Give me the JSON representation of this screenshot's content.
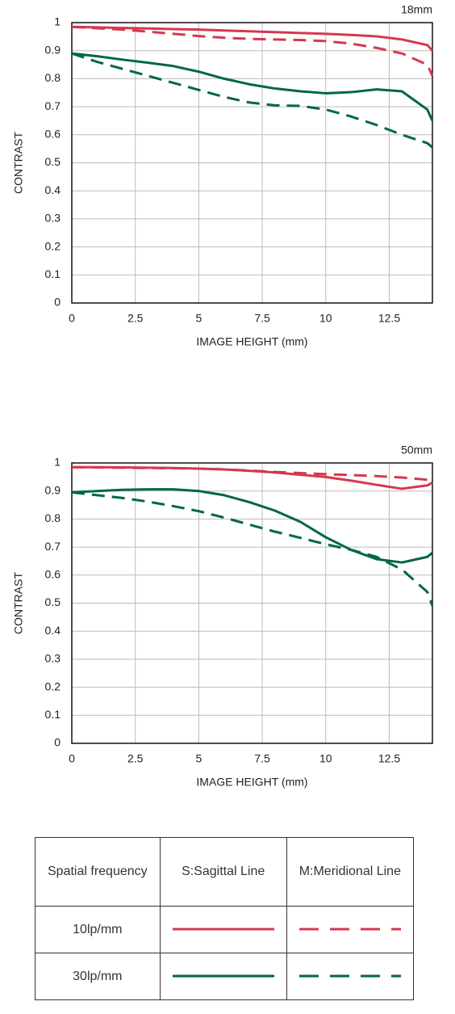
{
  "chart_data": [
    {
      "type": "line",
      "title": "18mm",
      "x_label": "IMAGE HEIGHT (mm)",
      "y_label": "CONTRAST",
      "x": [
        0,
        1,
        2,
        3,
        4,
        5,
        6,
        7,
        8,
        9,
        10,
        11,
        12,
        13,
        14,
        14.2
      ],
      "xlim": [
        0,
        14.2
      ],
      "ylim": [
        0,
        1
      ],
      "xticks": [
        0,
        2.5,
        5,
        7.5,
        10,
        12.5
      ],
      "yticks": [
        0,
        0.1,
        0.2,
        0.3,
        0.4,
        0.5,
        0.6,
        0.7,
        0.8,
        0.9,
        1
      ],
      "grid": true,
      "series": [
        {
          "color": "#d5384f",
          "dashed": false,
          "values": [
            0.985,
            0.983,
            0.981,
            0.979,
            0.977,
            0.975,
            0.972,
            0.969,
            0.966,
            0.963,
            0.96,
            0.956,
            0.951,
            0.94,
            0.92,
            0.9
          ]
        },
        {
          "color": "#d5384f",
          "dashed": true,
          "values": [
            0.985,
            0.98,
            0.975,
            0.968,
            0.96,
            0.952,
            0.946,
            0.942,
            0.94,
            0.938,
            0.934,
            0.925,
            0.91,
            0.89,
            0.85,
            0.81
          ]
        },
        {
          "color": "#00664a",
          "dashed": false,
          "values": [
            0.89,
            0.88,
            0.868,
            0.857,
            0.845,
            0.825,
            0.8,
            0.78,
            0.765,
            0.755,
            0.748,
            0.752,
            0.762,
            0.755,
            0.69,
            0.65
          ]
        },
        {
          "color": "#00664a",
          "dashed": true,
          "values": [
            0.89,
            0.86,
            0.835,
            0.81,
            0.785,
            0.76,
            0.735,
            0.715,
            0.705,
            0.703,
            0.69,
            0.665,
            0.635,
            0.6,
            0.57,
            0.555
          ]
        }
      ]
    },
    {
      "type": "line",
      "title": "50mm",
      "x_label": "IMAGE HEIGHT (mm)",
      "y_label": "CONTRAST",
      "x": [
        0,
        1,
        2,
        3,
        4,
        5,
        6,
        7,
        8,
        9,
        10,
        11,
        12,
        13,
        14,
        14.2
      ],
      "xlim": [
        0,
        14.2
      ],
      "ylim": [
        0,
        1
      ],
      "xticks": [
        0,
        2.5,
        5,
        7.5,
        10,
        12.5
      ],
      "yticks": [
        0,
        0.1,
        0.2,
        0.3,
        0.4,
        0.5,
        0.6,
        0.7,
        0.8,
        0.9,
        1
      ],
      "grid": true,
      "series": [
        {
          "color": "#d5384f",
          "dashed": false,
          "values": [
            0.985,
            0.985,
            0.984,
            0.983,
            0.982,
            0.98,
            0.977,
            0.972,
            0.966,
            0.958,
            0.95,
            0.937,
            0.922,
            0.908,
            0.92,
            0.93
          ]
        },
        {
          "color": "#d5384f",
          "dashed": true,
          "values": [
            0.985,
            0.984,
            0.983,
            0.982,
            0.981,
            0.98,
            0.977,
            0.973,
            0.968,
            0.964,
            0.96,
            0.957,
            0.953,
            0.948,
            0.94,
            0.93
          ]
        },
        {
          "color": "#00664a",
          "dashed": false,
          "values": [
            0.895,
            0.9,
            0.904,
            0.906,
            0.906,
            0.9,
            0.885,
            0.86,
            0.83,
            0.79,
            0.735,
            0.69,
            0.657,
            0.645,
            0.665,
            0.68
          ]
        },
        {
          "color": "#00664a",
          "dashed": true,
          "values": [
            0.895,
            0.885,
            0.875,
            0.862,
            0.846,
            0.828,
            0.805,
            0.78,
            0.755,
            0.733,
            0.71,
            0.69,
            0.665,
            0.62,
            0.54,
            0.49
          ]
        }
      ]
    }
  ],
  "legend_table": {
    "header": [
      "Spatial frequency",
      "S:Sagittal Line",
      "M:Meridional Line"
    ],
    "rows": [
      "10lp/mm",
      "30lp/mm"
    ]
  }
}
